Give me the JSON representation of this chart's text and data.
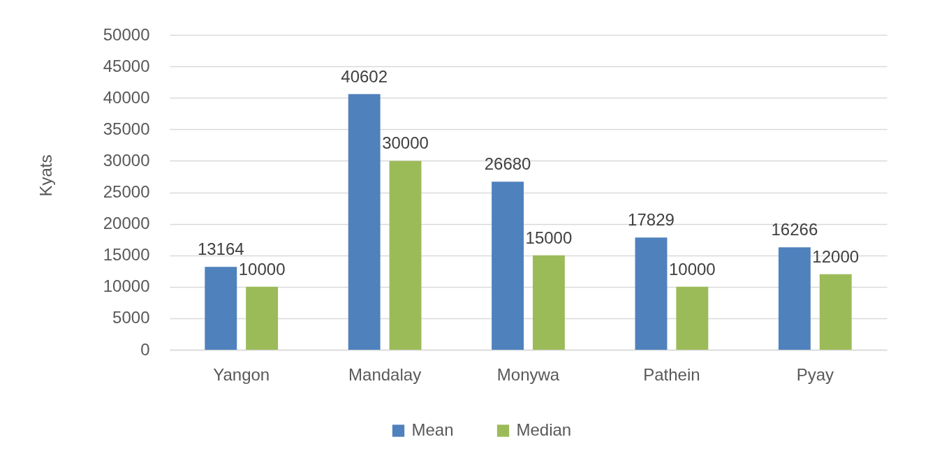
{
  "chart_data": {
    "type": "bar",
    "ylabel": "Kyats",
    "categories": [
      "Yangon",
      "Mandalay",
      "Monywa",
      "Pathein",
      "Pyay"
    ],
    "series": [
      {
        "name": "Mean",
        "color": "#4f81bd",
        "values": [
          13164,
          40602,
          26680,
          17829,
          16266
        ]
      },
      {
        "name": "Median",
        "color": "#9bbb59",
        "values": [
          10000,
          30000,
          15000,
          10000,
          12000
        ]
      }
    ],
    "ylim": [
      0,
      50000
    ],
    "yticks": [
      0,
      5000,
      10000,
      15000,
      20000,
      25000,
      30000,
      35000,
      40000,
      45000,
      50000
    ],
    "grid": "y",
    "legend": "bottom",
    "data_labels": true
  }
}
